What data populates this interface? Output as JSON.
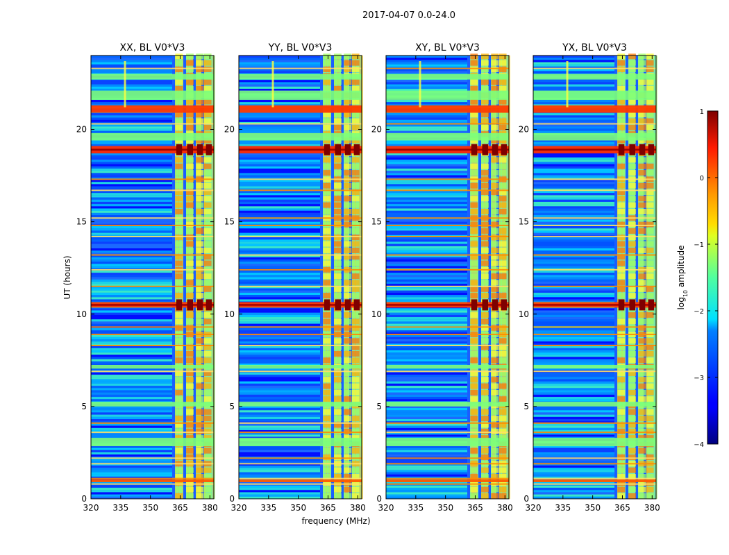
{
  "figure": {
    "suptitle": "2017-04-07 0.0-24.0"
  },
  "chart_data": {
    "type": "heatmap",
    "title": "2017-04-07 0.0-24.0",
    "xlabel": "frequency (MHz)",
    "ylabel": "UT (hours)",
    "xlim": [
      320,
      382
    ],
    "ylim": [
      0,
      24
    ],
    "xticks": [
      320,
      335,
      350,
      365,
      380
    ],
    "yticks": [
      0,
      5,
      10,
      15,
      20
    ],
    "panels": [
      {
        "title": "XX, BL V0*V3",
        "baseline": "V0*V3",
        "polarization": "XX"
      },
      {
        "title": "YY, BL V0*V3",
        "baseline": "V0*V3",
        "polarization": "YY"
      },
      {
        "title": "XY, BL V0*V3",
        "baseline": "V0*V3",
        "polarization": "XY"
      },
      {
        "title": "YX, BL V0*V3",
        "baseline": "V0*V3",
        "polarization": "YX"
      }
    ],
    "colorbar": {
      "label": "log10 amplitude",
      "label_main": "log",
      "label_sub": "10",
      "label_rest": " amplitude",
      "range": [
        -4,
        1
      ],
      "ticks": [
        1,
        0,
        -1,
        -2,
        -3,
        -4
      ],
      "tick_labels": [
        "1",
        "0",
        "−1",
        "−2",
        "−3",
        "−4"
      ],
      "colormap": "jet"
    },
    "features": {
      "rfi_band_mhz": [
        361,
        380
      ],
      "strong_rfi_times_hr": [
        18.9,
        10.5,
        1.0,
        2.0,
        6.0,
        12.0
      ],
      "broadband_green_bands_hr": [
        [
          2.85,
          3.3
        ],
        [
          5.0,
          5.25
        ],
        [
          7.05,
          7.25
        ],
        [
          19.4,
          19.8
        ],
        [
          21.6,
          22.1
        ],
        [
          22.7,
          23.0
        ]
      ]
    }
  }
}
